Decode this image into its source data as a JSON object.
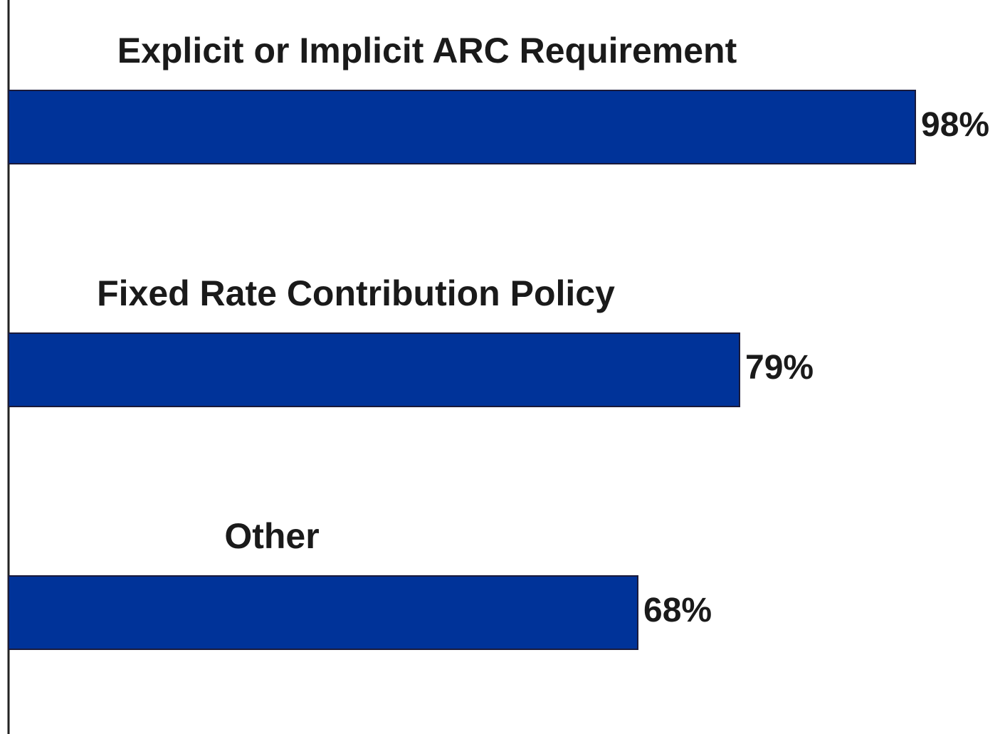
{
  "chart_data": {
    "type": "bar",
    "orientation": "horizontal",
    "categories": [
      "Explicit or Implicit ARC Requirement",
      "Fixed Rate Contribution Policy",
      "Other"
    ],
    "values": [
      98,
      79,
      68
    ],
    "value_labels": [
      "98%",
      "79%",
      "68%"
    ],
    "color": "#003399"
  }
}
